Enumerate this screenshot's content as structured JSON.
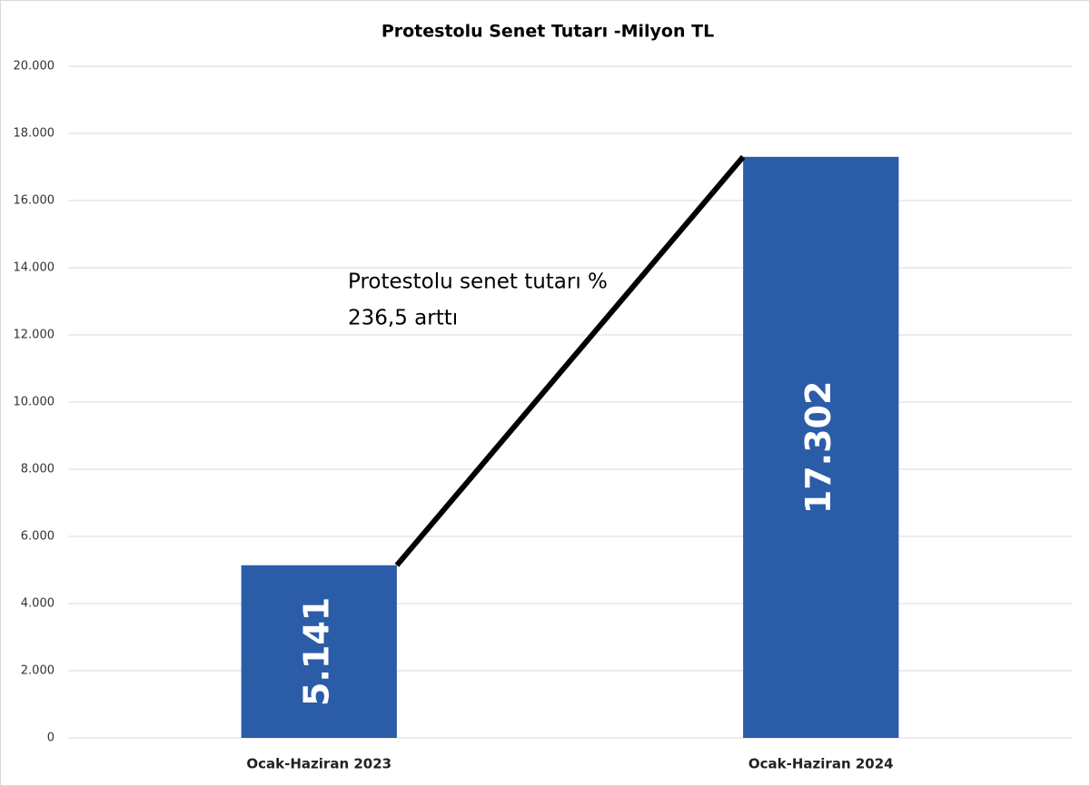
{
  "chart_data": {
    "type": "bar",
    "title": "Protestolu Senet Tutarı -Milyon TL",
    "categories": [
      "Ocak-Haziran 2023",
      "Ocak-Haziran 2024"
    ],
    "values": [
      5141,
      17302
    ],
    "value_labels": [
      "5.141",
      "17.302"
    ],
    "color": "#2b5ca8",
    "ylim": [
      0,
      20000
    ],
    "yticks": [
      0,
      {
        "value": 2000,
        "label": "2.000"
      },
      {
        "value": 4000,
        "label": "4.000"
      },
      {
        "value": 6000,
        "label": "6.000"
      },
      {
        "value": 8000,
        "label": "8.000"
      },
      {
        "value": 10000,
        "label": "10.000"
      },
      {
        "value": 12000,
        "label": "12.000"
      },
      {
        "value": 14000,
        "label": "14.000"
      },
      {
        "value": 16000,
        "label": "16.000"
      },
      {
        "value": 18000,
        "label": "18.000"
      },
      {
        "value": 20000,
        "label": "20.000"
      }
    ],
    "grid": true,
    "annotations": [
      "Protestolu senet tutarı %",
      "236,5 arttı"
    ]
  }
}
